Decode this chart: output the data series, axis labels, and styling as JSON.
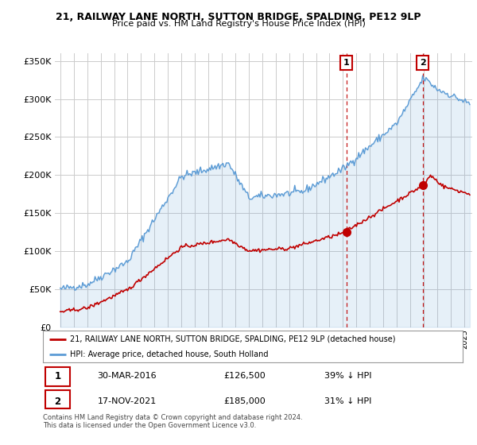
{
  "title": "21, RAILWAY LANE NORTH, SUTTON BRIDGE, SPALDING, PE12 9LP",
  "subtitle": "Price paid vs. HM Land Registry's House Price Index (HPI)",
  "legend_line1": "21, RAILWAY LANE NORTH, SUTTON BRIDGE, SPALDING, PE12 9LP (detached house)",
  "legend_line2": "HPI: Average price, detached house, South Holland",
  "footnote1": "Contains HM Land Registry data © Crown copyright and database right 2024.",
  "footnote2": "This data is licensed under the Open Government Licence v3.0.",
  "sale1_date": "30-MAR-2016",
  "sale1_price": "£126,500",
  "sale1_hpi": "39% ↓ HPI",
  "sale2_date": "17-NOV-2021",
  "sale2_price": "£185,000",
  "sale2_hpi": "31% ↓ HPI",
  "hpi_color": "#5b9bd5",
  "price_color": "#c00000",
  "sale_line_color": "#c00000",
  "background_color": "#ffffff",
  "ylim": [
    0,
    360000
  ],
  "yticks": [
    0,
    50000,
    100000,
    150000,
    200000,
    250000,
    300000,
    350000
  ],
  "sale1_x": 2016.25,
  "sale2_x": 2021.917
}
